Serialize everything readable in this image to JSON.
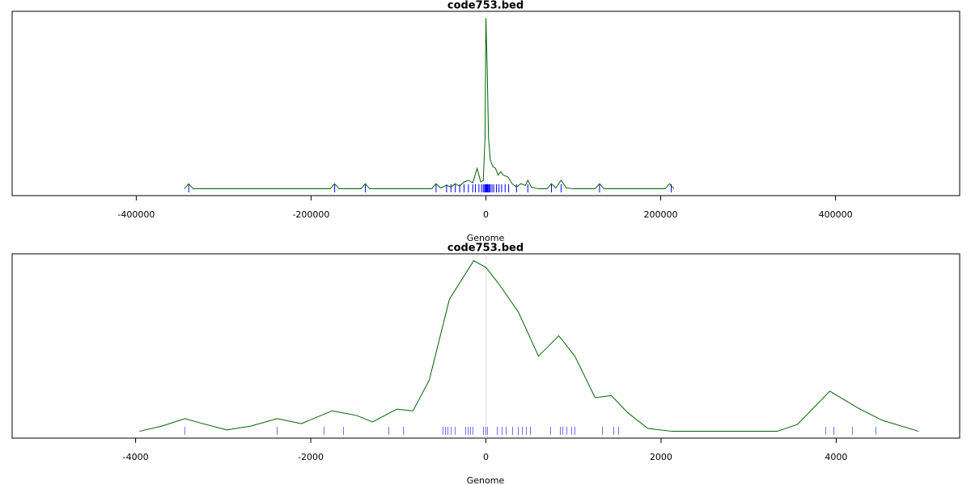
{
  "chart_data": [
    {
      "type": "density",
      "title": "code753.bed",
      "x_label": "Genome",
      "xlim": [
        -542000,
        542000
      ],
      "ylim": [
        -0.04,
        1.04
      ],
      "xticks": [
        -400000,
        -200000,
        0,
        200000,
        400000
      ],
      "color": "#006400",
      "x": [
        -345000,
        -340000,
        -335000,
        -178000,
        -173000,
        -168000,
        -143000,
        -138000,
        -133000,
        -62000,
        -57000,
        -52000,
        -45000,
        -40000,
        -35000,
        -30000,
        -25000,
        -20000,
        -15000,
        -10000,
        -6000,
        -3000,
        -1000,
        0,
        1500,
        3000,
        5000,
        8000,
        11000,
        14000,
        17000,
        20000,
        25000,
        30000,
        35000,
        40000,
        45000,
        48000,
        52000,
        60000,
        70000,
        75000,
        80000,
        86000,
        92000,
        100000,
        125000,
        130000,
        135000,
        205000,
        210000,
        215000
      ],
      "values": [
        0,
        0.03,
        0,
        0,
        0.03,
        0,
        0,
        0.03,
        0,
        0,
        0.03,
        0.005,
        0.02,
        0.01,
        0.03,
        0.015,
        0.04,
        0.05,
        0.035,
        0.12,
        0.04,
        0.05,
        0.3,
        1.0,
        0.7,
        0.3,
        0.17,
        0.13,
        0.12,
        0.08,
        0.1,
        0.08,
        0.07,
        0.03,
        0.01,
        0.03,
        0.02,
        0.05,
        0.01,
        0,
        0,
        0.03,
        0.005,
        0.05,
        0.005,
        0,
        0,
        0.03,
        0,
        0,
        0.03,
        0
      ],
      "rug": {
        "color": "#0000ff",
        "values": [
          -340000,
          -173000,
          -138000,
          -57000,
          -45000,
          -40000,
          -35000,
          -30000,
          -25000,
          -20000,
          -15000,
          -12000,
          -8000,
          -5000,
          -3000,
          -1500,
          -500,
          0,
          500,
          1000,
          1500,
          2000,
          3000,
          4000,
          5000,
          7000,
          9000,
          12000,
          15000,
          18000,
          22000,
          26000,
          35000,
          48000,
          75000,
          86000,
          130000,
          212000
        ]
      }
    },
    {
      "type": "density",
      "title": "code753.bed",
      "x_label": "Genome",
      "xlim": [
        -5410,
        5410
      ],
      "ylim": [
        -0.04,
        1.04
      ],
      "xticks": [
        -4000,
        -2000,
        0,
        2000,
        4000
      ],
      "color": "#006400",
      "x": [
        -3955,
        -3696,
        -3437,
        -3234,
        -2957,
        -2680,
        -2384,
        -2107,
        -1756,
        -1478,
        -1294,
        -1016,
        -832,
        -647,
        -416,
        -139,
        0,
        139,
        370,
        601,
        832,
        1016,
        1247,
        1432,
        1617,
        1848,
        2125,
        3326,
        3557,
        3927,
        4250,
        4527,
        4943
      ],
      "values": [
        0,
        0.031,
        0.074,
        0.045,
        0.008,
        0.031,
        0.074,
        0.045,
        0.12,
        0.093,
        0.055,
        0.13,
        0.12,
        0.3,
        0.775,
        1.0,
        0.96,
        0.87,
        0.7,
        0.44,
        0.56,
        0.44,
        0.197,
        0.21,
        0.11,
        0.017,
        0,
        0,
        0.04,
        0.235,
        0.136,
        0.064,
        0
      ],
      "rug": {
        "color": "#7070ff",
        "values": [
          -3437,
          -2384,
          -1848,
          -1626,
          -1109,
          -942,
          -490,
          -462,
          -434,
          -397,
          -351,
          -231,
          -203,
          -176,
          -148,
          -28,
          0,
          18,
          129,
          185,
          231,
          305,
          370,
          416,
          462,
          508,
          739,
          850,
          878,
          924,
          979,
          1016,
          1331,
          1460,
          1515,
          3880,
          3973,
          4185,
          4453
        ]
      }
    }
  ]
}
